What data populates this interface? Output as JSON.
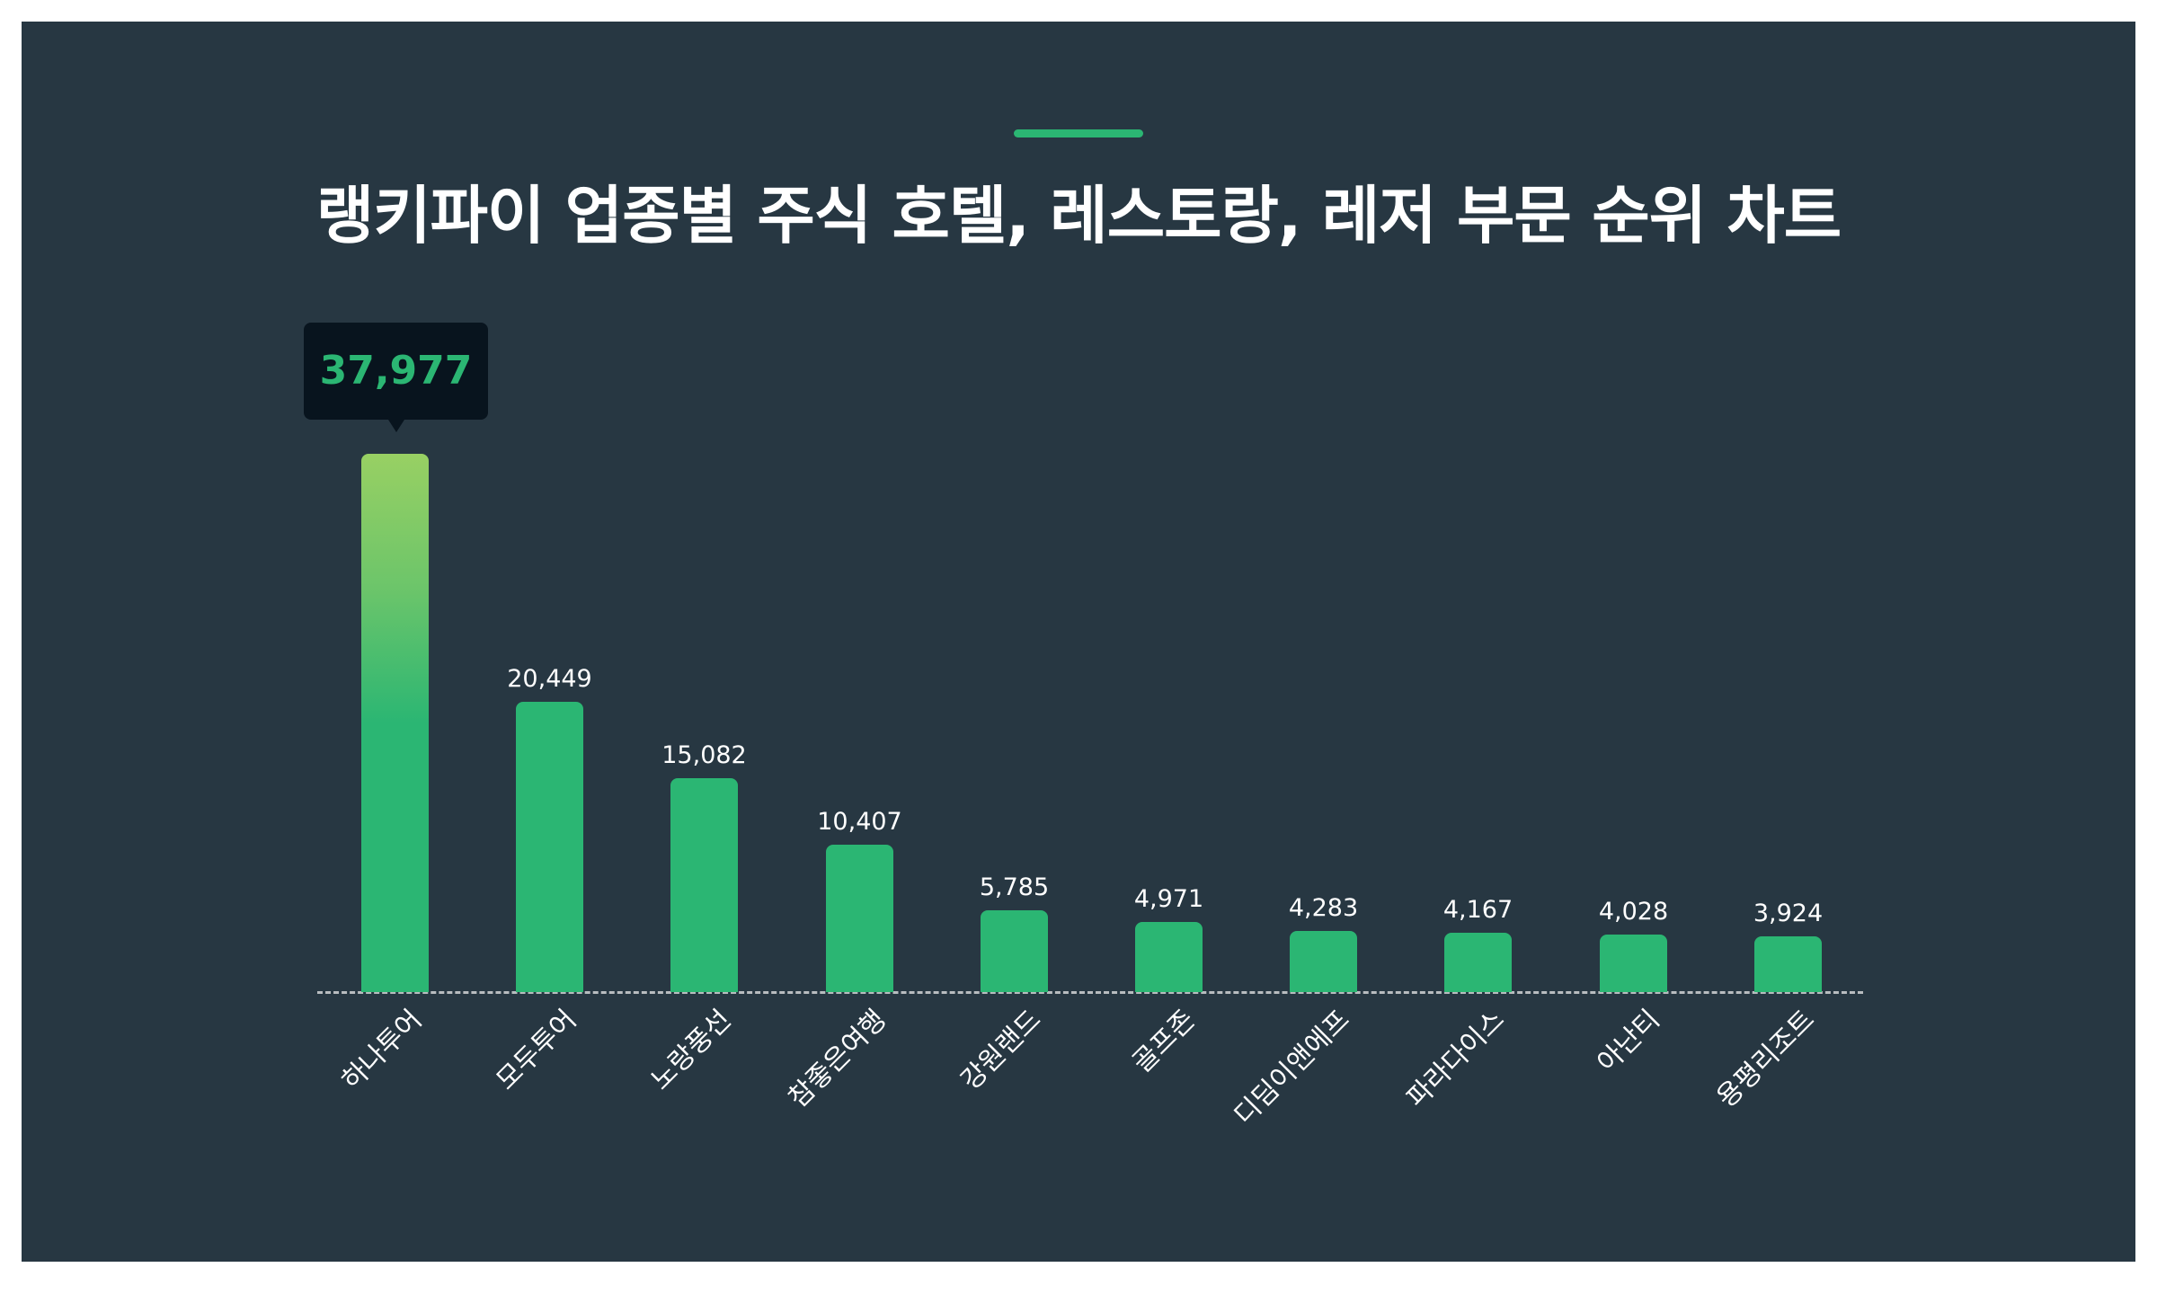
{
  "title": "랭키파이 업종별 주식 호텔, 레스토랑, 레저 부문 순위 차트",
  "colors": {
    "background": "#273742",
    "bar": "#2bb673",
    "bar_top_gradient": "#98d063",
    "tooltip_bg": "#08141e",
    "accent": "#2bb673"
  },
  "tooltip": {
    "value_label": "37,977"
  },
  "chart_data": {
    "type": "bar",
    "title": "랭키파이 업종별 주식 호텔, 레스토랑, 레저 부문 순위 차트",
    "xlabel": "",
    "ylabel": "",
    "categories": [
      "하나투어",
      "모두투어",
      "노랑풍선",
      "참좋은여행",
      "강원랜드",
      "골프존",
      "디딤이앤에프",
      "파라다이스",
      "아난티",
      "용평리조트"
    ],
    "values": [
      37977,
      20449,
      15082,
      10407,
      5785,
      4971,
      4283,
      4167,
      4028,
      3924
    ],
    "value_labels": [
      "37,977",
      "20,449",
      "15,082",
      "10,407",
      "5,785",
      "4,971",
      "4,283",
      "4,167",
      "4,028",
      "3,924"
    ],
    "grid": false,
    "legend": "none",
    "highlight_index": 0
  }
}
